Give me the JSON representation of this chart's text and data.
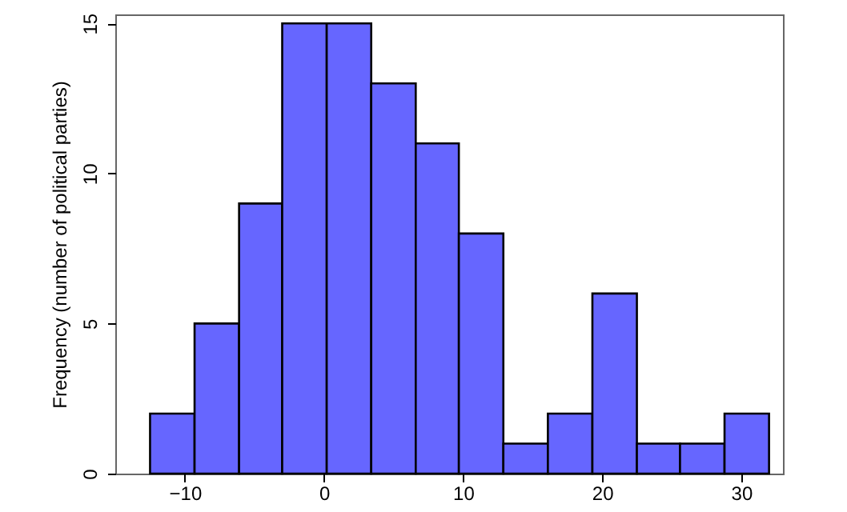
{
  "chart_data": {
    "type": "histogram",
    "ylabel": "Frequency (number of political parties)",
    "bins": [
      -12.5,
      -9.3,
      -6.1,
      -3.0,
      0.2,
      3.4,
      6.6,
      9.7,
      12.9,
      16.1,
      19.3,
      22.5,
      25.6,
      28.8,
      32.0
    ],
    "values": [
      2,
      5,
      9,
      15,
      15,
      13,
      11,
      8,
      1,
      2,
      6,
      1,
      1,
      2
    ],
    "color": "#6666ff",
    "xlim": [
      -15,
      33
    ],
    "xticks": [
      -10,
      0,
      10,
      20,
      30
    ],
    "ylim": [
      0,
      15.3
    ],
    "yticks": [
      0,
      5,
      10,
      15
    ],
    "grid": false
  }
}
